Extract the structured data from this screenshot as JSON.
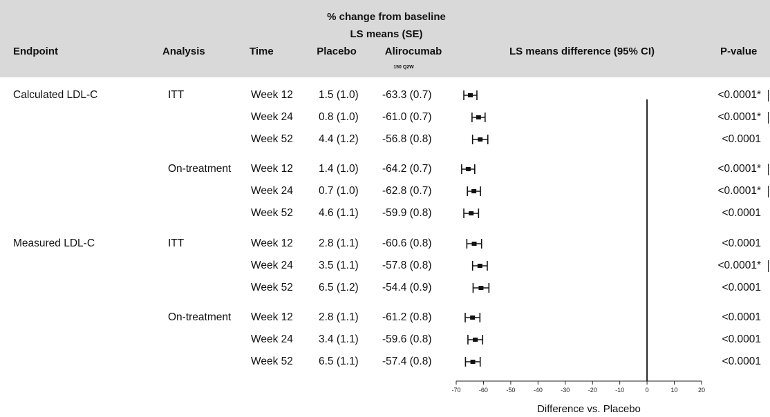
{
  "header": {
    "group_title_line1": "% change from baseline",
    "group_title_line2": "LS means (SE)",
    "col_endpoint": "Endpoint",
    "col_analysis": "Analysis",
    "col_time": "Time",
    "col_placebo": "Placebo",
    "col_alirocumab": "Alirocumab",
    "col_alirocumab_dose": "150 Q2W",
    "col_difference": "LS means difference (95% CI)",
    "col_pvalue": "P-value"
  },
  "rows": [
    {
      "endpoint": "Calculated LDL-C",
      "analysis": "ITT",
      "time": "Week 12",
      "placebo": "1.5 (1.0)",
      "alirocumab": "-63.3 (0.7)",
      "pvalue": "<0.0001*"
    },
    {
      "endpoint": "",
      "analysis": "",
      "time": "Week 24",
      "placebo": "0.8 (1.0)",
      "alirocumab": "-61.0 (0.7)",
      "pvalue": "<0.0001*"
    },
    {
      "endpoint": "",
      "analysis": "",
      "time": "Week 52",
      "placebo": "4.4 (1.2)",
      "alirocumab": "-56.8 (0.8)",
      "pvalue": "<0.0001"
    },
    {
      "endpoint": "",
      "analysis": "On-treatment",
      "time": "Week 12",
      "placebo": "1.4 (1.0)",
      "alirocumab": "-64.2 (0.7)",
      "pvalue": "<0.0001*"
    },
    {
      "endpoint": "",
      "analysis": "",
      "time": "Week 24",
      "placebo": "0.7 (1.0)",
      "alirocumab": "-62.8 (0.7)",
      "pvalue": "<0.0001*"
    },
    {
      "endpoint": "",
      "analysis": "",
      "time": "Week 52",
      "placebo": "4.6 (1.1)",
      "alirocumab": "-59.9 (0.8)",
      "pvalue": "<0.0001"
    },
    {
      "endpoint": "Measured LDL-C",
      "analysis": "ITT",
      "time": "Week 12",
      "placebo": "2.8 (1.1)",
      "alirocumab": "-60.6 (0.8)",
      "pvalue": "<0.0001"
    },
    {
      "endpoint": "",
      "analysis": "",
      "time": "Week 24",
      "placebo": "3.5 (1.1)",
      "alirocumab": "-57.8 (0.8)",
      "pvalue": "<0.0001*"
    },
    {
      "endpoint": "",
      "analysis": "",
      "time": "Week 52",
      "placebo": "6.5 (1.2)",
      "alirocumab": "-54.4 (0.9)",
      "pvalue": "<0.0001"
    },
    {
      "endpoint": "",
      "analysis": "On-treatment",
      "time": "Week 12",
      "placebo": "2.8 (1.1)",
      "alirocumab": "-61.2 (0.8)",
      "pvalue": "<0.0001"
    },
    {
      "endpoint": "",
      "analysis": "",
      "time": "Week 24",
      "placebo": "3.4 (1.1)",
      "alirocumab": "-59.6 (0.8)",
      "pvalue": "<0.0001"
    },
    {
      "endpoint": "",
      "analysis": "",
      "time": "Week 52",
      "placebo": "6.5 (1.1)",
      "alirocumab": "-57.4 (0.8)",
      "pvalue": "<0.0001"
    }
  ],
  "chart_data": {
    "type": "scatter",
    "title": "",
    "xlabel": "Difference vs. Placebo",
    "ylabel": "",
    "xlim": [
      -70,
      20
    ],
    "xticks": [
      -70,
      -60,
      -50,
      -40,
      -30,
      -20,
      -10,
      0,
      10,
      20
    ],
    "reference_line_x": 0,
    "grid": false,
    "series": [
      {
        "values": [
          {
            "estimate": -64.8,
            "lower": -67.2,
            "upper": -62.4
          },
          {
            "estimate": -61.8,
            "lower": -64.2,
            "upper": -59.4
          },
          {
            "estimate": -61.2,
            "lower": -64.0,
            "upper": -58.4
          },
          {
            "estimate": -65.6,
            "lower": -68.0,
            "upper": -63.2
          },
          {
            "estimate": -63.5,
            "lower": -65.9,
            "upper": -61.1
          },
          {
            "estimate": -64.5,
            "lower": -67.2,
            "upper": -61.8
          },
          {
            "estimate": -63.4,
            "lower": -66.1,
            "upper": -60.7
          },
          {
            "estimate": -61.3,
            "lower": -64.0,
            "upper": -58.6
          },
          {
            "estimate": -60.9,
            "lower": -63.8,
            "upper": -58.0
          },
          {
            "estimate": -64.0,
            "lower": -66.7,
            "upper": -61.3
          },
          {
            "estimate": -63.0,
            "lower": -65.7,
            "upper": -60.3
          },
          {
            "estimate": -63.9,
            "lower": -66.6,
            "upper": -61.2
          }
        ]
      }
    ]
  }
}
